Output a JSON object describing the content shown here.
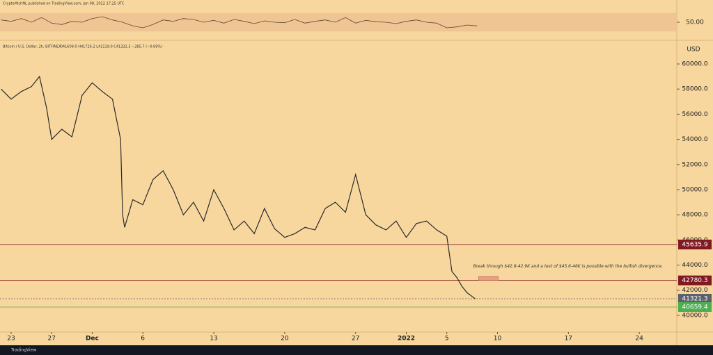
{
  "header": {
    "publisher": "CryptoMichNL published on TradingView.com, Jan 08, 2022 17:25 UTC",
    "footer": "TradingView"
  },
  "chart_data": [
    {
      "type": "line",
      "name": "rsi-panel",
      "color": "#5a4630",
      "band": [
        30,
        70
      ],
      "band_color": "#f0c594",
      "x": [
        -1,
        0,
        1,
        2,
        3,
        4,
        5,
        6,
        7,
        8,
        9,
        10,
        11,
        12,
        13,
        14,
        15,
        16,
        17,
        18,
        19,
        20,
        21,
        22,
        23,
        24,
        25,
        26,
        27,
        28,
        29,
        30,
        31,
        32,
        33,
        34,
        35,
        36,
        37,
        38,
        39,
        40,
        41,
        42,
        43,
        44,
        45,
        46
      ],
      "values": [
        55,
        52,
        58,
        50,
        60,
        48,
        45,
        52,
        50,
        58,
        62,
        55,
        50,
        42,
        38,
        45,
        55,
        52,
        58,
        56,
        50,
        54,
        48,
        56,
        52,
        47,
        53,
        50,
        49,
        56,
        48,
        52,
        55,
        50,
        60,
        48,
        54,
        51,
        50,
        47,
        52,
        55,
        50,
        48,
        38,
        40,
        44,
        42
      ],
      "xlim": [
        -1.1,
        65.7
      ],
      "ylim": [
        20,
        80
      ],
      "yticks": [
        {
          "value": 50,
          "label": "50.00"
        }
      ]
    },
    {
      "type": "line",
      "name": "price",
      "symbol": "Bitcoin / U.S. Dollar, 2h, BITFINEX",
      "ohlc": "O41609.0 H41726.2 L41119.0 C41321.3 −285.7 (−0.69%)",
      "y_label": "USD",
      "color": "#2b2b2b",
      "x": [
        -1,
        0,
        1,
        2,
        2.8,
        3.5,
        4,
        5,
        6,
        7,
        8,
        9,
        10,
        10.8,
        11,
        11.2,
        12,
        13,
        14,
        15,
        16,
        17,
        18,
        19,
        20,
        21,
        22,
        23,
        24,
        25,
        26,
        27,
        28,
        29,
        30,
        31,
        32,
        33,
        34,
        35,
        36,
        37,
        38,
        39,
        40,
        41,
        42,
        43,
        43.5,
        44,
        44.5,
        45,
        45.5,
        45.8
      ],
      "values": [
        58000,
        57200,
        57800,
        58200,
        59000,
        56500,
        54000,
        54800,
        54200,
        57500,
        58500,
        57800,
        57200,
        54000,
        48000,
        47000,
        49200,
        48800,
        50800,
        51500,
        50000,
        48000,
        49000,
        47500,
        50000,
        48500,
        46800,
        47500,
        46500,
        48500,
        46900,
        46200,
        46500,
        47000,
        46800,
        48500,
        49000,
        48200,
        51200,
        48000,
        47200,
        46800,
        47500,
        46200,
        47300,
        47500,
        46800,
        46300,
        43500,
        43000,
        42300,
        41800,
        41500,
        41321.3
      ],
      "xlim": [
        -1.1,
        65.7
      ],
      "xticks": [
        {
          "value": 0,
          "label": "23"
        },
        {
          "value": 4,
          "label": "27"
        },
        {
          "value": 8,
          "label": "Dec"
        },
        {
          "value": 13,
          "label": "6"
        },
        {
          "value": 20,
          "label": "13"
        },
        {
          "value": 27,
          "label": "20"
        },
        {
          "value": 34,
          "label": "27"
        },
        {
          "value": 39,
          "label": "2022"
        },
        {
          "value": 43,
          "label": "5"
        },
        {
          "value": 48,
          "label": "10"
        },
        {
          "value": 55,
          "label": "17"
        },
        {
          "value": 62,
          "label": "24"
        }
      ],
      "ylim": [
        38670,
        61660
      ],
      "yticks": [
        {
          "value": 40000,
          "label": "40000.0"
        },
        {
          "value": 42000,
          "label": "42000.0"
        },
        {
          "value": 44000,
          "label": "44000.0"
        },
        {
          "value": 46000,
          "label": "46000.0"
        },
        {
          "value": 48000,
          "label": "48000.0"
        },
        {
          "value": 50000,
          "label": "50000.0"
        },
        {
          "value": 52000,
          "label": "52000.0"
        },
        {
          "value": 54000,
          "label": "54000.0"
        },
        {
          "value": 56000,
          "label": "56000.0"
        },
        {
          "value": 58000,
          "label": "58000.0"
        },
        {
          "value": 60000,
          "label": "60000.0"
        }
      ],
      "levels": [
        {
          "value": 45635.9,
          "color": "#801922"
        },
        {
          "value": 42780.3,
          "color": "#801922"
        },
        {
          "value": 41321.3,
          "color": "#5d606b"
        },
        {
          "value": 40659.4,
          "color": "#4caf50"
        }
      ],
      "annotation": "Break through $42.8-42.9K and a test of $45.6-46K is possible with the bullish divergence.",
      "annotation_x": 48,
      "annotation_y": 43900
    }
  ]
}
